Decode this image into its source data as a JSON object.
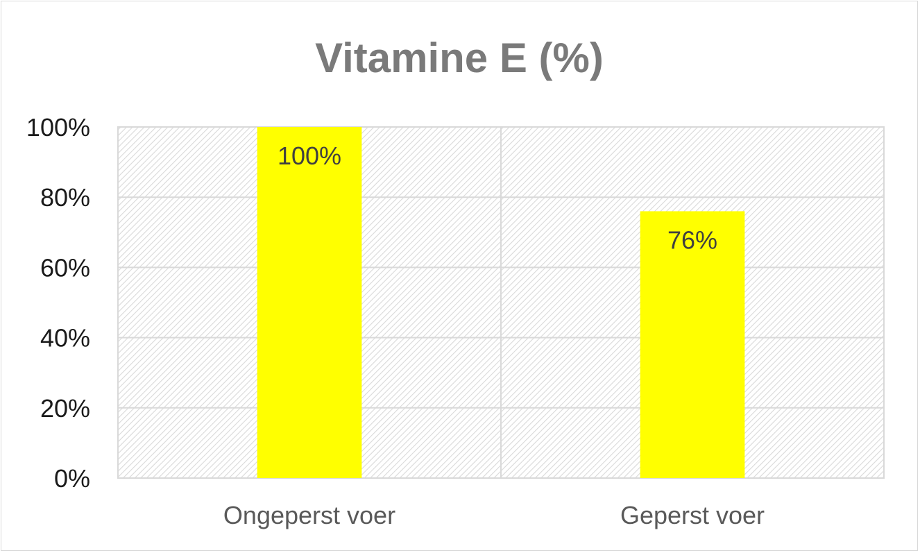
{
  "chart_data": {
    "type": "bar",
    "title": "Vitamine E (%)",
    "xlabel": "",
    "ylabel": "",
    "categories": [
      "Ongeperst voer",
      "Geperst voer"
    ],
    "values": [
      100,
      76
    ],
    "data_labels": [
      "100%",
      "76%"
    ],
    "ylim": [
      0,
      100
    ],
    "yticks": [
      0,
      20,
      40,
      60,
      80,
      100
    ],
    "ytick_labels": [
      "0%",
      "20%",
      "40%",
      "60%",
      "80%",
      "100%"
    ],
    "grid": true,
    "legend": "none",
    "bar_color": "#ffff00",
    "plot_pattern_color": "#d9d9d9",
    "title_color": "#7a7a7a"
  }
}
